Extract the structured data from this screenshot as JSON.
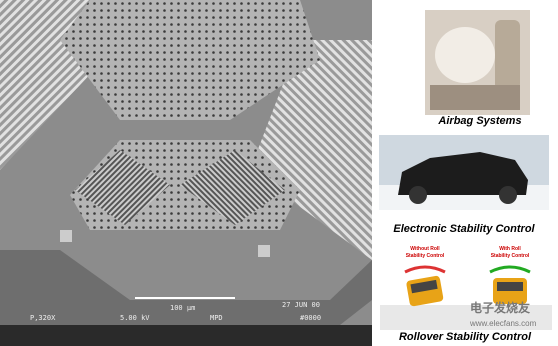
{
  "sem_image": {
    "scale_bar": "100 μm",
    "date": "27 JUN 00",
    "magnification": "P,320X",
    "voltage": "5.00 kV",
    "operator": "MPD",
    "id": "#0000"
  },
  "panels": [
    {
      "caption": "Airbag Systems"
    },
    {
      "caption": "Electronic Stability Control"
    },
    {
      "caption": "Rollover  Stability Control",
      "left_label": [
        "Without Roll",
        "Stability Control"
      ],
      "right_label": [
        "With Roll",
        "Stability Control"
      ]
    }
  ],
  "watermark": {
    "brand": "电子发烧友",
    "url": "www.elecfans.com"
  }
}
